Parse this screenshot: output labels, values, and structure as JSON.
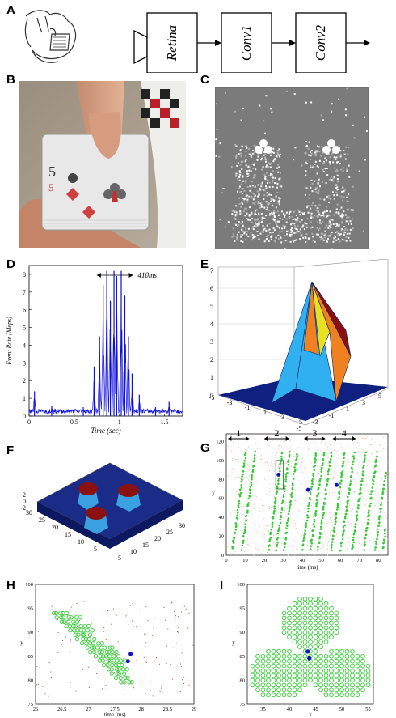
{
  "panel_labels": [
    "A",
    "B",
    "C",
    "D",
    "E",
    "F",
    "G",
    "H",
    "I"
  ],
  "panel_a": {
    "blocks": [
      "Retina",
      "Conv1",
      "Conv2"
    ]
  },
  "panel_d": {
    "annotation": "410ms",
    "chart_data": {
      "type": "line",
      "xlabel": "Time (sec)",
      "ylabel": "Event Rate (Meps)",
      "xlim": [
        0,
        1.7
      ],
      "ylim": [
        0,
        8.5
      ],
      "xticks": [
        "0",
        "0.5",
        "1",
        "1.5"
      ],
      "yticks": [
        "0",
        "1",
        "2",
        "3",
        "4",
        "5",
        "6",
        "7",
        "8"
      ],
      "peaks": [
        {
          "x": 0.06,
          "y": 1.4
        },
        {
          "x": 0.25,
          "y": 0.6
        },
        {
          "x": 0.6,
          "y": 0.5
        },
        {
          "x": 0.72,
          "y": 2.8
        },
        {
          "x": 0.78,
          "y": 4.5
        },
        {
          "x": 0.82,
          "y": 7.4
        },
        {
          "x": 0.86,
          "y": 8.2
        },
        {
          "x": 0.9,
          "y": 6.5
        },
        {
          "x": 0.94,
          "y": 8.2
        },
        {
          "x": 0.97,
          "y": 7.9
        },
        {
          "x": 1.02,
          "y": 8.2
        },
        {
          "x": 1.06,
          "y": 6.8
        },
        {
          "x": 1.1,
          "y": 4.5
        },
        {
          "x": 1.14,
          "y": 2.4
        },
        {
          "x": 1.22,
          "y": 1.2
        },
        {
          "x": 1.4,
          "y": 0.5
        },
        {
          "x": 1.55,
          "y": 0.8
        }
      ]
    }
  },
  "panel_e": {
    "z_ticks": [
      "0",
      "1",
      "2",
      "3",
      "4",
      "5",
      "6",
      "7"
    ],
    "x_ticks": [
      "-5",
      "-3",
      "-1",
      "1",
      "3",
      "5"
    ],
    "y_ticks": [
      "-5",
      "-3",
      "-1",
      "1",
      "3",
      "5"
    ]
  },
  "panel_f": {
    "z_ticks": [
      "2",
      "0",
      "-2"
    ],
    "left_ticks": [
      "30",
      "25",
      "20",
      "15",
      "10",
      "5"
    ],
    "right_ticks": [
      "5",
      "10",
      "15",
      "20",
      "25",
      "30"
    ]
  },
  "panel_g": {
    "segments": [
      "1",
      "2",
      "3",
      "4"
    ],
    "xlabel": "time (ms)",
    "ylabel": "y",
    "xticks": [
      "0",
      "10",
      "20",
      "30",
      "40",
      "50",
      "60",
      "70",
      "80"
    ],
    "yticks": [
      "0",
      "20",
      "40",
      "60",
      "80",
      "100",
      "120"
    ]
  },
  "panel_h": {
    "xlabel": "time (ms)",
    "ylabel": "y",
    "xticks": [
      "26",
      "26.5",
      "27",
      "27.5",
      "28",
      "28.5",
      "29"
    ],
    "yticks": [
      "75",
      "80",
      "85",
      "90",
      "95",
      "100"
    ]
  },
  "panel_i": {
    "xlabel": "x",
    "ylabel": "y",
    "xticks": [
      "35",
      "40",
      "45",
      "50",
      "55"
    ],
    "yticks": [
      "75",
      "80",
      "85",
      "90",
      "95",
      "100"
    ]
  },
  "colors": {
    "blue_trace": "#1010e0",
    "green_marker": "#33cc33",
    "pyramid_dark": "#102080",
    "pyramid_red": "#8b1010",
    "pyramid_orange": "#f08020",
    "pyramid_yellow": "#e8e020",
    "pyramid_cyan": "#30b0f0"
  }
}
